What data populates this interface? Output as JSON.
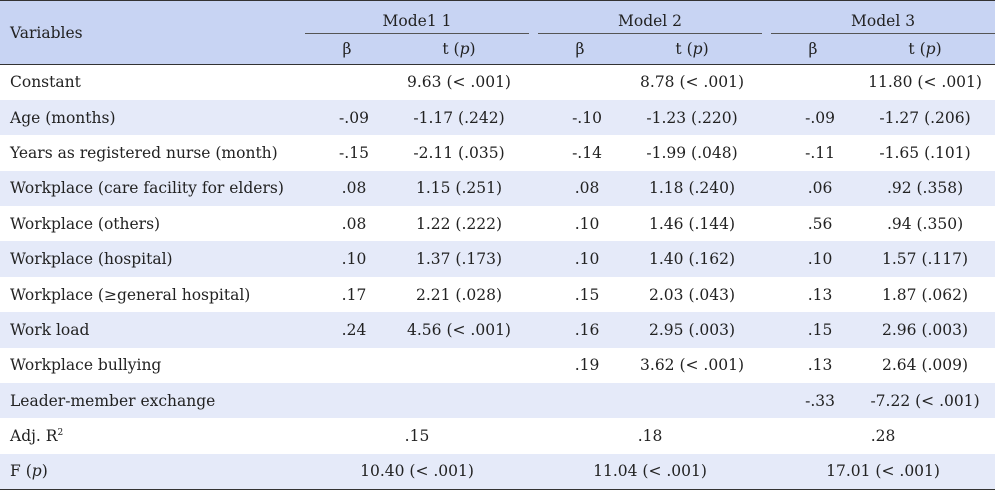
{
  "table": {
    "var_header": "Variables",
    "models": [
      {
        "name": "Mode1 1",
        "beta": "β",
        "t": "t",
        "p": "p"
      },
      {
        "name": "Model 2",
        "beta": "β",
        "t": "t",
        "p": "p"
      },
      {
        "name": "Model 3",
        "beta": "β",
        "t": "t",
        "p": "p"
      }
    ],
    "rows": [
      {
        "label": "Constant",
        "m1b": "",
        "m1t": "9.63 (< .001)",
        "m2b": "",
        "m2t": "8.78 (< .001)",
        "m3b": "",
        "m3t": "11.80 (< .001)"
      },
      {
        "label": "Age (months)",
        "m1b": "-.09",
        "m1t": "-1.17 (.242)",
        "m2b": "-.10",
        "m2t": "-1.23 (.220)",
        "m3b": "-.09",
        "m3t": "-1.27 (.206)"
      },
      {
        "label": "Years as registered nurse (month)",
        "m1b": "-.15",
        "m1t": "-2.11 (.035)",
        "m2b": "-.14",
        "m2t": "-1.99 (.048)",
        "m3b": "-.11",
        "m3t": "-1.65 (.101)"
      },
      {
        "label": "Workplace (care facility for elders)",
        "m1b": ".08",
        "m1t": "1.15 (.251)",
        "m2b": ".08",
        "m2t": "1.18 (.240)",
        "m3b": ".06",
        "m3t": ".92 (.358)"
      },
      {
        "label": "Workplace (others)",
        "m1b": ".08",
        "m1t": "1.22 (.222)",
        "m2b": ".10",
        "m2t": "1.46 (.144)",
        "m3b": ".56",
        "m3t": ".94 (.350)"
      },
      {
        "label": "Workplace (hospital)",
        "m1b": ".10",
        "m1t": "1.37 (.173)",
        "m2b": ".10",
        "m2t": "1.40 (.162)",
        "m3b": ".10",
        "m3t": "1.57 (.117)"
      },
      {
        "label": "Workplace (≥general hospital)",
        "m1b": ".17",
        "m1t": "2.21 (.028)",
        "m2b": ".15",
        "m2t": "2.03 (.043)",
        "m3b": ".13",
        "m3t": "1.87 (.062)"
      },
      {
        "label": "Work load",
        "m1b": ".24",
        "m1t": "4.56 (< .001)",
        "m2b": ".16",
        "m2t": "2.95 (.003)",
        "m3b": ".15",
        "m3t": "2.96 (.003)"
      },
      {
        "label": "Workplace bullying",
        "m1b": "",
        "m1t": "",
        "m2b": ".19",
        "m2t": "3.62 (< .001)",
        "m3b": ".13",
        "m3t": "2.64 (.009)"
      },
      {
        "label": "Leader-member exchange",
        "m1b": "",
        "m1t": "",
        "m2b": "",
        "m2t": "",
        "m3b": "-.33",
        "m3t": "-7.22 (< .001)"
      }
    ],
    "adj_r2": {
      "label": "Adj. R",
      "sup": "2",
      "m1": ".15",
      "m2": ".18",
      "m3": ".28"
    },
    "f_row": {
      "label": "F",
      "p": "p",
      "m1": "10.40 (< .001)",
      "m2": "11.04 (< .001)",
      "m3": "17.01 (< .001)"
    }
  }
}
